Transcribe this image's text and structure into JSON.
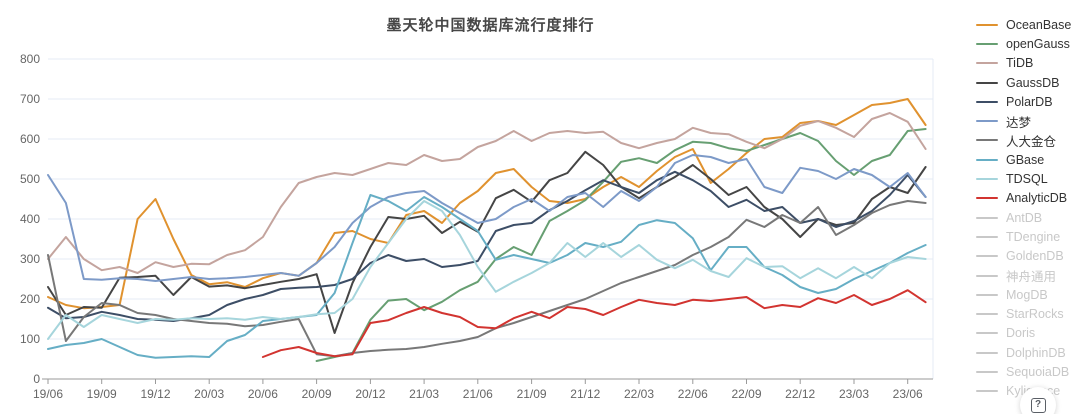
{
  "title": "墨天轮中国数据库流行度排行",
  "help_button": {
    "glyph": "?"
  },
  "colors": {
    "grid": "#e4ebf4",
    "axis": "#9a9a9a",
    "tick_label": "#666666",
    "disabled": "#c8c8c8",
    "title_text": "#464646"
  },
  "legend": {
    "position": "right",
    "items": [
      {
        "label": "OceanBase",
        "color": "#e0922f",
        "active": true
      },
      {
        "label": "openGauss",
        "color": "#679f72",
        "active": true
      },
      {
        "label": "TiDB",
        "color": "#c4a49e",
        "active": true
      },
      {
        "label": "GaussDB",
        "color": "#454545",
        "active": true
      },
      {
        "label": "PolarDB",
        "color": "#3d4e66",
        "active": true
      },
      {
        "label": "达梦",
        "color": "#7d9ac8",
        "active": true
      },
      {
        "label": "人大金仓",
        "color": "#787878",
        "active": true
      },
      {
        "label": "GBase",
        "color": "#66aec5",
        "active": true
      },
      {
        "label": "TDSQL",
        "color": "#a6d5dc",
        "active": true
      },
      {
        "label": "AnalyticDB",
        "color": "#d23430",
        "active": true
      },
      {
        "label": "AntDB",
        "color": "#c8c8c8",
        "active": false
      },
      {
        "label": "TDengine",
        "color": "#c8c8c8",
        "active": false
      },
      {
        "label": "GoldenDB",
        "color": "#c8c8c8",
        "active": false
      },
      {
        "label": "神舟通用",
        "color": "#c8c8c8",
        "active": false
      },
      {
        "label": "MogDB",
        "color": "#c8c8c8",
        "active": false
      },
      {
        "label": "StarRocks",
        "color": "#c8c8c8",
        "active": false
      },
      {
        "label": "Doris",
        "color": "#c8c8c8",
        "active": false
      },
      {
        "label": "DolphinDB",
        "color": "#c8c8c8",
        "active": false
      },
      {
        "label": "SequoiaDB",
        "color": "#c8c8c8",
        "active": false
      },
      {
        "label": "Kyligence",
        "color": "#c8c8c8",
        "active": false
      }
    ]
  },
  "chart_data": {
    "type": "line",
    "title": "墨天轮中国数据库流行度排行",
    "xlabel": "",
    "ylabel": "",
    "ylim": [
      0,
      800
    ],
    "grid": true,
    "legend_position": "right",
    "y_ticks": [
      0,
      100,
      200,
      300,
      400,
      500,
      600,
      700,
      800
    ],
    "x_tick_labels": [
      "19/06",
      "19/09",
      "19/12",
      "20/03",
      "20/06",
      "20/09",
      "20/12",
      "21/03",
      "21/06",
      "21/09",
      "21/12",
      "22/03",
      "22/06",
      "22/09",
      "22/12",
      "23/03",
      "23/06"
    ],
    "x": [
      "19/06",
      "19/07",
      "19/08",
      "19/09",
      "19/10",
      "19/11",
      "19/12",
      "20/01",
      "20/02",
      "20/03",
      "20/04",
      "20/05",
      "20/06",
      "20/07",
      "20/08",
      "20/09",
      "20/10",
      "20/11",
      "20/12",
      "21/01",
      "21/02",
      "21/03",
      "21/04",
      "21/05",
      "21/06",
      "21/07",
      "21/08",
      "21/09",
      "21/10",
      "21/11",
      "21/12",
      "22/01",
      "22/02",
      "22/03",
      "22/04",
      "22/05",
      "22/06",
      "22/07",
      "22/08",
      "22/09",
      "22/10",
      "22/11",
      "22/12",
      "23/01",
      "23/02",
      "23/03",
      "23/04",
      "23/05",
      "23/06",
      "23/07"
    ],
    "series": [
      {
        "name": "OceanBase",
        "color": "#e0922f",
        "values": [
          205,
          185,
          177,
          180,
          185,
          400,
          450,
          350,
          260,
          237,
          242,
          230,
          252,
          265,
          258,
          290,
          365,
          370,
          350,
          340,
          410,
          420,
          390,
          440,
          470,
          515,
          525,
          480,
          445,
          440,
          450,
          480,
          505,
          480,
          520,
          555,
          575,
          490,
          525,
          565,
          600,
          605,
          640,
          645,
          635,
          660,
          685,
          690,
          700,
          635
        ]
      },
      {
        "name": "openGauss",
        "color": "#679f72",
        "values": [
          null,
          null,
          null,
          null,
          null,
          null,
          null,
          null,
          null,
          null,
          null,
          null,
          null,
          null,
          null,
          45,
          55,
          65,
          148,
          196,
          200,
          172,
          193,
          222,
          243,
          300,
          330,
          310,
          395,
          420,
          447,
          493,
          543,
          552,
          540,
          572,
          593,
          590,
          577,
          570,
          585,
          600,
          615,
          595,
          545,
          510,
          545,
          560,
          620,
          625
        ]
      },
      {
        "name": "TiDB",
        "color": "#c4a49e",
        "values": [
          300,
          355,
          300,
          272,
          280,
          265,
          292,
          280,
          288,
          287,
          310,
          322,
          355,
          430,
          490,
          505,
          515,
          510,
          525,
          540,
          535,
          560,
          545,
          550,
          580,
          595,
          620,
          595,
          615,
          620,
          615,
          618,
          590,
          577,
          590,
          600,
          628,
          615,
          612,
          593,
          577,
          600,
          633,
          645,
          628,
          605,
          650,
          665,
          643,
          575
        ]
      },
      {
        "name": "GaussDB",
        "color": "#454545",
        "values": [
          230,
          160,
          180,
          178,
          253,
          255,
          258,
          210,
          255,
          231,
          234,
          227,
          235,
          243,
          250,
          262,
          115,
          240,
          330,
          405,
          400,
          408,
          365,
          393,
          368,
          452,
          473,
          443,
          497,
          515,
          568,
          535,
          480,
          452,
          480,
          505,
          535,
          500,
          460,
          480,
          430,
          400,
          355,
          400,
          385,
          390,
          450,
          480,
          465,
          530
        ]
      },
      {
        "name": "PolarDB",
        "color": "#3d4e66",
        "values": [
          178,
          152,
          155,
          168,
          160,
          150,
          148,
          145,
          152,
          160,
          185,
          200,
          210,
          225,
          228,
          230,
          235,
          250,
          290,
          310,
          295,
          300,
          280,
          285,
          295,
          370,
          385,
          390,
          422,
          445,
          472,
          497,
          480,
          465,
          497,
          518,
          497,
          470,
          430,
          448,
          420,
          430,
          390,
          400,
          380,
          395,
          420,
          460,
          510,
          455
        ]
      },
      {
        "name": "达梦",
        "color": "#7d9ac8",
        "values": [
          510,
          440,
          250,
          248,
          252,
          250,
          245,
          250,
          255,
          250,
          252,
          255,
          260,
          265,
          258,
          290,
          330,
          390,
          430,
          455,
          465,
          470,
          440,
          415,
          390,
          400,
          430,
          450,
          420,
          455,
          465,
          430,
          470,
          445,
          480,
          540,
          560,
          555,
          540,
          550,
          480,
          465,
          528,
          520,
          500,
          525,
          510,
          480,
          515,
          455
        ]
      },
      {
        "name": "人大金仓",
        "color": "#787878",
        "values": [
          310,
          95,
          155,
          190,
          185,
          165,
          160,
          150,
          145,
          140,
          138,
          132,
          135,
          143,
          150,
          62,
          57,
          65,
          70,
          73,
          75,
          80,
          88,
          95,
          105,
          127,
          140,
          155,
          170,
          185,
          200,
          220,
          240,
          255,
          270,
          285,
          310,
          330,
          355,
          398,
          380,
          410,
          390,
          430,
          360,
          385,
          415,
          435,
          445,
          440
        ]
      },
      {
        "name": "GBase",
        "color": "#66aec5",
        "values": [
          75,
          85,
          90,
          100,
          80,
          60,
          53,
          55,
          57,
          55,
          95,
          110,
          145,
          150,
          155,
          160,
          215,
          340,
          460,
          445,
          420,
          455,
          430,
          400,
          370,
          298,
          310,
          300,
          290,
          310,
          340,
          330,
          343,
          385,
          397,
          390,
          352,
          272,
          330,
          330,
          280,
          260,
          230,
          215,
          225,
          250,
          270,
          290,
          315,
          335
        ]
      },
      {
        "name": "TDSQL",
        "color": "#a6d5dc",
        "values": [
          100,
          160,
          130,
          160,
          150,
          140,
          150,
          148,
          152,
          150,
          152,
          148,
          155,
          150,
          155,
          162,
          165,
          200,
          280,
          340,
          400,
          445,
          420,
          360,
          280,
          218,
          243,
          265,
          290,
          340,
          305,
          340,
          305,
          335,
          298,
          277,
          298,
          270,
          255,
          302,
          280,
          282,
          252,
          277,
          252,
          280,
          252,
          290,
          305,
          300
        ]
      },
      {
        "name": "AnalyticDB",
        "color": "#d23430",
        "values": [
          null,
          null,
          null,
          null,
          null,
          null,
          null,
          null,
          null,
          null,
          null,
          null,
          55,
          72,
          80,
          65,
          57,
          62,
          140,
          147,
          165,
          180,
          165,
          155,
          130,
          127,
          152,
          168,
          152,
          180,
          175,
          160,
          180,
          198,
          190,
          185,
          198,
          195,
          200,
          205,
          177,
          185,
          180,
          202,
          190,
          210,
          185,
          200,
          222,
          192
        ]
      }
    ]
  }
}
